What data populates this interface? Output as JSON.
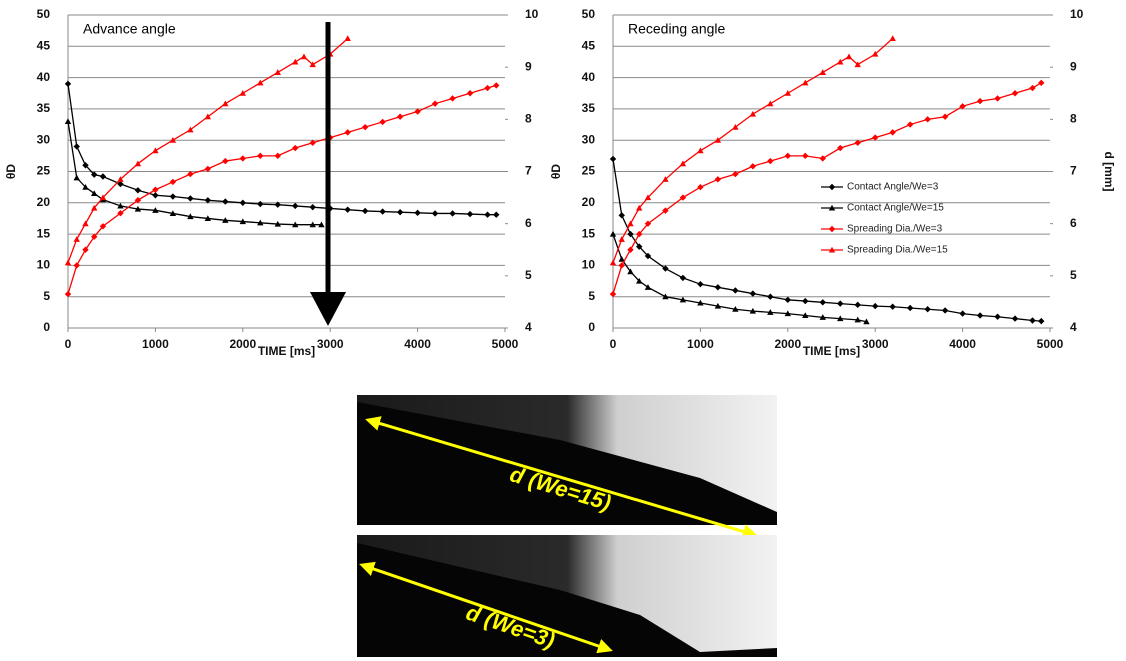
{
  "chart_data": [
    {
      "type": "line",
      "title": "Advance angle",
      "x_label": "TIME [ms]",
      "y_label": "θD",
      "xlim": [
        0,
        5000
      ],
      "xticks": [
        0,
        1000,
        2000,
        3000,
        4000,
        5000
      ],
      "ylim": [
        0,
        50
      ],
      "yticks": [
        0,
        5,
        10,
        15,
        20,
        25,
        30,
        35,
        40,
        45,
        50
      ],
      "y2lim": [
        4,
        10
      ],
      "y2ticks": [
        4,
        5,
        6,
        7,
        8,
        9,
        10
      ],
      "grid": true,
      "series": [
        {
          "color": "#000000",
          "marker": "diamond",
          "axis": "y",
          "x": [
            0,
            100,
            200,
            300,
            400,
            600,
            800,
            1000,
            1200,
            1400,
            1600,
            1800,
            2000,
            2200,
            2400,
            2600,
            2800,
            3000,
            3200,
            3400,
            3600,
            3800,
            4000,
            4200,
            4400,
            4600,
            4800,
            4900
          ],
          "values": [
            39,
            29,
            26,
            24.5,
            24.2,
            23,
            22,
            21.2,
            21,
            20.7,
            20.4,
            20.2,
            20,
            19.8,
            19.7,
            19.5,
            19.3,
            19.1,
            18.9,
            18.7,
            18.6,
            18.5,
            18.4,
            18.3,
            18.3,
            18.2,
            18.1,
            18.1
          ]
        },
        {
          "color": "#000000",
          "marker": "triangle",
          "axis": "y",
          "x": [
            0,
            100,
            200,
            300,
            400,
            600,
            800,
            1000,
            1200,
            1400,
            1600,
            1800,
            2000,
            2200,
            2400,
            2600,
            2800,
            2900
          ],
          "values": [
            33,
            24,
            22.5,
            21.5,
            20.5,
            19.5,
            19,
            18.8,
            18.3,
            17.8,
            17.5,
            17.2,
            17,
            16.8,
            16.6,
            16.5,
            16.5,
            16.5
          ]
        },
        {
          "color": "#ff0000",
          "marker": "diamond",
          "axis": "y2",
          "x": [
            0,
            100,
            200,
            300,
            400,
            600,
            800,
            1000,
            1200,
            1400,
            1600,
            1800,
            2000,
            2200,
            2400,
            2600,
            2800,
            3000,
            3200,
            3400,
            3600,
            3800,
            4000,
            4200,
            4400,
            4600,
            4800,
            4900
          ],
          "values": [
            4.65,
            5.2,
            5.5,
            5.75,
            5.95,
            6.2,
            6.45,
            6.65,
            6.8,
            6.95,
            7.05,
            7.2,
            7.25,
            7.3,
            7.3,
            7.45,
            7.55,
            7.65,
            7.75,
            7.85,
            7.95,
            8.05,
            8.15,
            8.3,
            8.4,
            8.5,
            8.6,
            8.65
          ]
        },
        {
          "color": "#ff0000",
          "marker": "triangle",
          "axis": "y2",
          "x": [
            0,
            100,
            200,
            300,
            400,
            600,
            800,
            1000,
            1200,
            1400,
            1600,
            1800,
            2000,
            2200,
            2400,
            2600,
            2700,
            2800,
            3000,
            3200
          ],
          "values": [
            5.25,
            5.7,
            6.0,
            6.3,
            6.5,
            6.85,
            7.15,
            7.4,
            7.6,
            7.8,
            8.05,
            8.3,
            8.5,
            8.7,
            8.9,
            9.1,
            9.2,
            9.05,
            9.25,
            9.55
          ]
        }
      ]
    },
    {
      "type": "line",
      "title": "Receding angle",
      "x_label": "TIME [ms]",
      "y_label": "θD",
      "y2_label": "d [mm]",
      "xlim": [
        0,
        5000
      ],
      "xticks": [
        0,
        1000,
        2000,
        3000,
        4000,
        5000
      ],
      "ylim": [
        0,
        50
      ],
      "yticks": [
        0,
        5,
        10,
        15,
        20,
        25,
        30,
        35,
        40,
        45,
        50
      ],
      "y2lim": [
        4,
        10
      ],
      "y2ticks": [
        4,
        5,
        6,
        7,
        8,
        9,
        10
      ],
      "grid": true,
      "legend": "center right",
      "series": [
        {
          "name": "Contact Angle/We=3",
          "color": "#000000",
          "marker": "diamond",
          "axis": "y",
          "x": [
            0,
            100,
            200,
            300,
            400,
            600,
            800,
            1000,
            1200,
            1400,
            1600,
            1800,
            2000,
            2200,
            2400,
            2600,
            2800,
            3000,
            3200,
            3400,
            3600,
            3800,
            4000,
            4200,
            4400,
            4600,
            4800,
            4900
          ],
          "values": [
            27,
            18,
            15,
            13,
            11.5,
            9.5,
            8,
            7,
            6.5,
            6,
            5.5,
            5,
            4.5,
            4.3,
            4.1,
            3.9,
            3.7,
            3.5,
            3.4,
            3.2,
            3,
            2.8,
            2.3,
            2,
            1.8,
            1.5,
            1.2,
            1.1
          ]
        },
        {
          "name": "Contact Angle/We=15",
          "color": "#000000",
          "marker": "triangle",
          "axis": "y",
          "x": [
            0,
            100,
            200,
            300,
            400,
            600,
            800,
            1000,
            1200,
            1400,
            1600,
            1800,
            2000,
            2200,
            2400,
            2600,
            2800,
            2900
          ],
          "values": [
            15,
            11,
            9,
            7.5,
            6.5,
            5,
            4.5,
            4,
            3.5,
            3,
            2.7,
            2.5,
            2.3,
            2,
            1.7,
            1.5,
            1.3,
            1
          ]
        },
        {
          "name": "Spreading Dia./We=3",
          "color": "#ff0000",
          "marker": "diamond",
          "axis": "y2",
          "x": [
            0,
            100,
            200,
            300,
            400,
            600,
            800,
            1000,
            1200,
            1400,
            1600,
            1800,
            2000,
            2200,
            2400,
            2600,
            2800,
            3000,
            3200,
            3400,
            3600,
            3800,
            4000,
            4200,
            4400,
            4600,
            4800,
            4900
          ],
          "values": [
            4.65,
            5.2,
            5.5,
            5.8,
            6.0,
            6.25,
            6.5,
            6.7,
            6.85,
            6.95,
            7.1,
            7.2,
            7.3,
            7.3,
            7.25,
            7.45,
            7.55,
            7.65,
            7.75,
            7.9,
            8.0,
            8.05,
            8.25,
            8.35,
            8.4,
            8.5,
            8.6,
            8.7
          ]
        },
        {
          "name": "Spreading Dia./We=15",
          "color": "#ff0000",
          "marker": "triangle",
          "axis": "y2",
          "x": [
            0,
            100,
            200,
            300,
            400,
            600,
            800,
            1000,
            1200,
            1400,
            1600,
            1800,
            2000,
            2200,
            2400,
            2600,
            2700,
            2800,
            3000,
            3200
          ],
          "values": [
            5.25,
            5.7,
            6.0,
            6.3,
            6.5,
            6.85,
            7.15,
            7.4,
            7.6,
            7.85,
            8.1,
            8.3,
            8.5,
            8.7,
            8.9,
            9.1,
            9.2,
            9.05,
            9.25,
            9.55
          ]
        }
      ]
    }
  ],
  "photos": [
    {
      "label": "d (We=15)"
    },
    {
      "label": "d (We=3)"
    }
  ]
}
